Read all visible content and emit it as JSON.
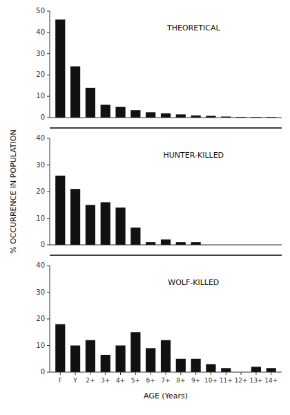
{
  "chart_data": [
    {
      "type": "bar",
      "title": "THEORETICAL",
      "categories": [
        "F",
        "Y",
        "2+",
        "3+",
        "4+",
        "5+",
        "6+",
        "7+",
        "8+",
        "9+",
        "10+",
        "11+",
        "12+",
        "13+",
        "14+"
      ],
      "values": [
        46,
        24,
        14,
        6,
        5,
        3.5,
        2.5,
        2,
        1.5,
        1,
        0.8,
        0.5,
        0.3,
        0.3,
        0.3
      ],
      "color": "#111111",
      "ylim": [
        0,
        50
      ],
      "yticks": [
        0,
        10,
        20,
        30,
        40,
        50
      ],
      "grid": false,
      "tick_labels": "y"
    },
    {
      "type": "bar",
      "title": "HUNTER-KILLED",
      "ylabel": "% OCCURRENCE IN POPULATION",
      "categories": [
        "F",
        "Y",
        "2+",
        "3+",
        "4+",
        "5+",
        "6+",
        "7+",
        "8+",
        "9+",
        "10+",
        "11+",
        "12+",
        "13+",
        "14+"
      ],
      "values": [
        26,
        21,
        15,
        16,
        14,
        6.5,
        1,
        2,
        1,
        1,
        0,
        0,
        0,
        0,
        0
      ],
      "color": "#111111",
      "ylim": [
        0,
        40
      ],
      "yticks": [
        0,
        10,
        20,
        30,
        40
      ],
      "grid": false,
      "tick_labels": "y"
    },
    {
      "type": "bar",
      "title": "WOLF-KILLED",
      "xlabel": "AGE (Years)",
      "categories": [
        "F",
        "Y",
        "2+",
        "3+",
        "4+",
        "5+",
        "6+",
        "7+",
        "8+",
        "9+",
        "10+",
        "11+",
        "12+",
        "13+",
        "14+"
      ],
      "values": [
        18,
        10,
        12,
        6.5,
        10,
        15,
        9,
        12,
        5,
        5,
        3,
        1.5,
        0,
        2,
        1.5
      ],
      "color": "#111111",
      "ylim": [
        0,
        40
      ],
      "yticks": [
        0,
        10,
        20,
        30,
        40
      ],
      "grid": false
    }
  ]
}
